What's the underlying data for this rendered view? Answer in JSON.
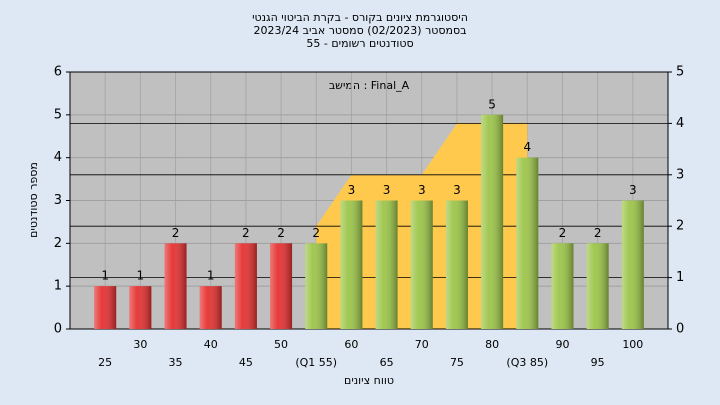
{
  "chart_data": {
    "type": "bar",
    "title": [
      "היסטוגרמת ציונים בקורס - בקרת הביטוי הגנטי",
      "בסמסטר (02/2023) סמסטר אביב 2023/24",
      "סטודנטים רשומים - 55"
    ],
    "annotation": "בשימה : Final_A",
    "x_label": "טווח ציונים",
    "y_label": "מספר סטודנטים",
    "categories": [
      "25",
      "30",
      "35",
      "40",
      "45",
      "50",
      "(Q1 55)",
      "60",
      "65",
      "70",
      "75",
      "80",
      "(Q3 85)",
      "90",
      "95",
      "100"
    ],
    "values": [
      1,
      1,
      2,
      1,
      2,
      2,
      2,
      3,
      3,
      3,
      3,
      5,
      4,
      2,
      2,
      3
    ],
    "colors": [
      "#e53030",
      "#e53030",
      "#e53030",
      "#e53030",
      "#e53030",
      "#e53030",
      "#9cc548",
      "#9cc548",
      "#9cc548",
      "#9cc548",
      "#9cc548",
      "#9cc548",
      "#9cc548",
      "#9cc548",
      "#9cc548",
      "#9cc548"
    ],
    "area": {
      "color": "#ffc94d",
      "axis": "y2",
      "values": [
        null,
        null,
        null,
        null,
        null,
        null,
        2,
        3,
        3,
        3,
        4,
        4,
        4,
        null,
        null,
        null
      ]
    },
    "ylim": [
      0,
      6
    ],
    "yticks": [
      0,
      1,
      2,
      3,
      4,
      5,
      6
    ],
    "y2lim": [
      0,
      5
    ],
    "y2ticks": [
      0,
      1,
      2,
      3,
      4,
      5
    ],
    "grid": true
  }
}
